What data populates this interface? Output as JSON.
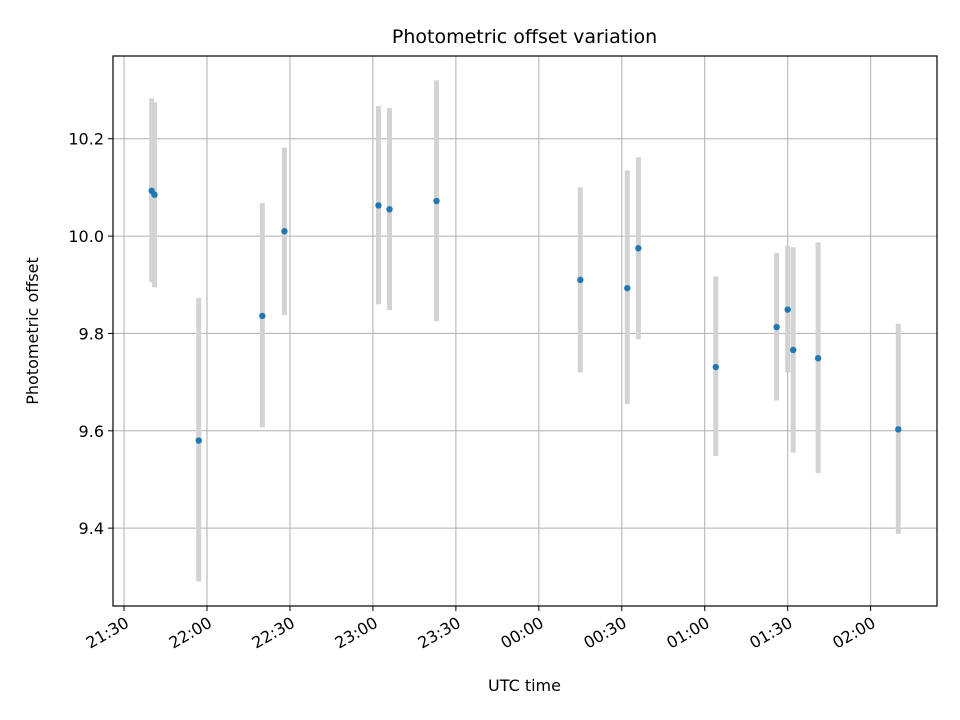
{
  "chart_data": {
    "type": "scatter",
    "title": "Photometric offset variation",
    "xlabel": "UTC time",
    "ylabel": "Photometric offset",
    "grid": true,
    "legend": "none",
    "x_unit": "UTC time (HH:MM), 21:30 on first night through 02:00 next day",
    "xlim": [
      "21:26",
      "02:24"
    ],
    "ylim": [
      9.24,
      10.37
    ],
    "x_ticks": [
      "21:30",
      "22:00",
      "22:30",
      "23:00",
      "23:30",
      "00:00",
      "00:30",
      "01:00",
      "01:30",
      "02:00"
    ],
    "y_ticks": [
      9.4,
      9.6,
      9.8,
      10.0,
      10.2
    ],
    "colors": {
      "point": "#1f77b4",
      "errorbar": "#d3d3d3",
      "grid": "#b0b0b0"
    },
    "series": [
      {
        "points": [
          {
            "x": "21:40",
            "y": 10.093,
            "ylo": 9.905,
            "yhi": 10.283
          },
          {
            "x": "21:41",
            "y": 10.085,
            "ylo": 9.895,
            "yhi": 10.275
          },
          {
            "x": "21:57",
            "y": 9.58,
            "ylo": 9.29,
            "yhi": 9.873
          },
          {
            "x": "22:20",
            "y": 9.836,
            "ylo": 9.607,
            "yhi": 10.068
          },
          {
            "x": "22:28",
            "y": 10.01,
            "ylo": 9.838,
            "yhi": 10.182
          },
          {
            "x": "23:02",
            "y": 10.063,
            "ylo": 9.86,
            "yhi": 10.267
          },
          {
            "x": "23:06",
            "y": 10.055,
            "ylo": 9.848,
            "yhi": 10.263
          },
          {
            "x": "23:23",
            "y": 10.072,
            "ylo": 9.825,
            "yhi": 10.32
          },
          {
            "x": "00:15",
            "y": 9.91,
            "ylo": 9.72,
            "yhi": 10.1
          },
          {
            "x": "00:32",
            "y": 9.893,
            "ylo": 9.655,
            "yhi": 10.135
          },
          {
            "x": "00:36",
            "y": 9.975,
            "ylo": 9.788,
            "yhi": 10.162
          },
          {
            "x": "01:04",
            "y": 9.731,
            "ylo": 9.548,
            "yhi": 9.917
          },
          {
            "x": "01:26",
            "y": 9.813,
            "ylo": 9.662,
            "yhi": 9.965
          },
          {
            "x": "01:30",
            "y": 9.849,
            "ylo": 9.72,
            "yhi": 9.98
          },
          {
            "x": "01:32",
            "y": 9.766,
            "ylo": 9.555,
            "yhi": 9.977
          },
          {
            "x": "01:41",
            "y": 9.749,
            "ylo": 9.513,
            "yhi": 9.987
          },
          {
            "x": "02:10",
            "y": 9.603,
            "ylo": 9.388,
            "yhi": 9.82
          }
        ]
      }
    ]
  }
}
